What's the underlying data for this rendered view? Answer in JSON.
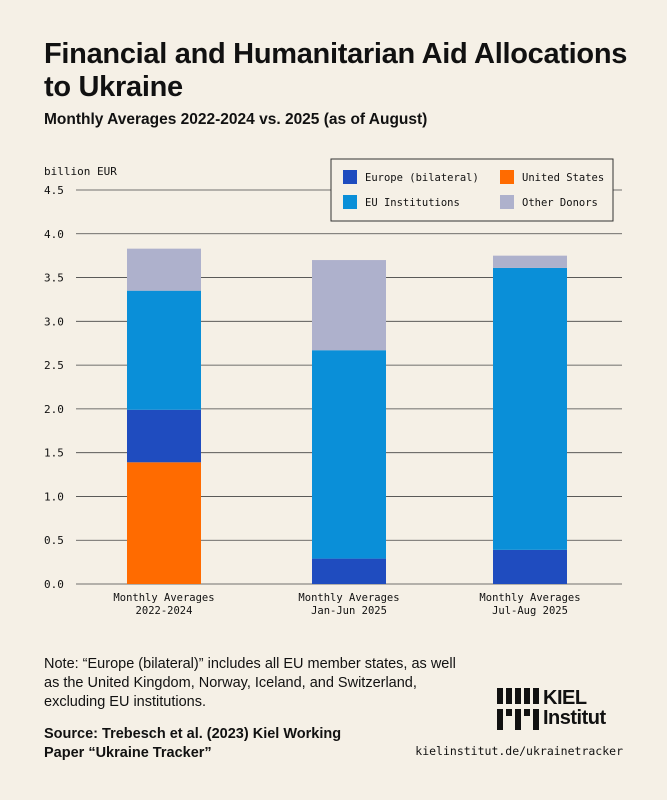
{
  "header": {
    "title": "Financial and Humanitarian Aid Allocations to Ukraine",
    "subtitle": "Monthly Averages 2022-2024 vs. 2025 (as of August)"
  },
  "footer": {
    "note": "Note: “Europe (bilateral)” includes all EU member states, as well as the United Kingdom, Norway, Iceland, and Switzerland, excluding EU institutions.",
    "source": "Source: Trebesch et al. (2023) Kiel Working Paper “Ukraine Tracker”",
    "logo_line1": "KIEL",
    "logo_line2": "Institut",
    "url": "kielinstitut.de/ukrainetracker"
  },
  "chart_data": {
    "type": "bar",
    "stacked": true,
    "ylabel": "billion EUR",
    "ylim": [
      0,
      4.5
    ],
    "yticks": [
      "0.0",
      "0.5",
      "1.0",
      "1.5",
      "2.0",
      "2.5",
      "3.0",
      "3.5",
      "4.0",
      "4.5"
    ],
    "grid": true,
    "legend_position": "top-right",
    "categories": [
      [
        "Monthly Averages",
        "2022-2024"
      ],
      [
        "Monthly Averages",
        "Jan-Jun 2025"
      ],
      [
        "Monthly Averages",
        "Jul-Aug 2025"
      ]
    ],
    "series": [
      {
        "name": "United States",
        "color": "#ff6b00",
        "values": [
          1.39,
          0.0,
          0.0
        ]
      },
      {
        "name": "Europe (bilateral)",
        "color": "#1f4cbf",
        "values": [
          0.6,
          0.29,
          0.39
        ]
      },
      {
        "name": "EU Institutions",
        "color": "#0a8fd8",
        "values": [
          1.36,
          2.38,
          3.22
        ]
      },
      {
        "name": "Other Donors",
        "color": "#aeb1cc",
        "values": [
          0.48,
          1.03,
          0.14
        ]
      }
    ],
    "legend_order": [
      "Europe (bilateral)",
      "United States",
      "EU Institutions",
      "Other Donors"
    ]
  }
}
